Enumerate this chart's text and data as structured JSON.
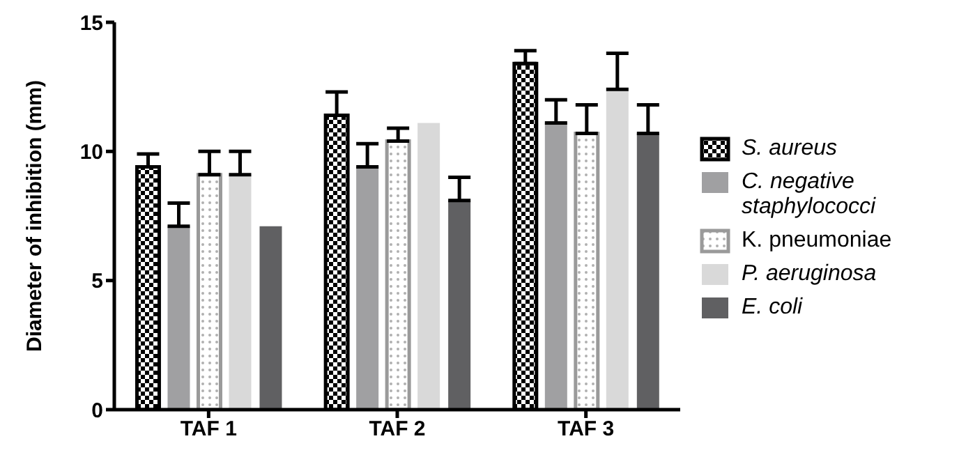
{
  "chart_data": {
    "type": "bar",
    "ylabel": "Diameter of inhibition (mm)",
    "categories": [
      "TAF 1",
      "TAF 2",
      "TAF 3"
    ],
    "ylim": [
      0,
      15
    ],
    "yticks": [
      0,
      5,
      10,
      15
    ],
    "grid": false,
    "legend": "right",
    "series": [
      {
        "name": "S. aureus",
        "color": "#000000",
        "values": [
          9.4,
          11.4,
          13.4
        ],
        "errors": [
          [
            9.4,
            9.9
          ],
          [
            11.4,
            12.3
          ],
          [
            13.4,
            13.9
          ]
        ]
      },
      {
        "name": "C. negative staphylococci",
        "color": "#a0a0a2",
        "values": [
          7.1,
          9.4,
          11.1
        ],
        "errors": [
          [
            7.1,
            8.0
          ],
          [
            9.4,
            10.3
          ],
          [
            11.1,
            12.0
          ]
        ]
      },
      {
        "name": "K. pneumoniae",
        "color": "#9a9a9a",
        "values": [
          9.1,
          10.4,
          10.7
        ],
        "errors": [
          [
            9.1,
            10.0
          ],
          [
            10.4,
            10.9
          ],
          [
            10.7,
            11.8
          ]
        ]
      },
      {
        "name": "P. aeruginosa",
        "color": "#d9d9d9",
        "values": [
          9.1,
          11.1,
          12.4
        ],
        "errors": [
          [
            9.1,
            10.0
          ],
          null,
          [
            12.4,
            13.8
          ]
        ]
      },
      {
        "name": "E. coli",
        "color": "#606062",
        "values": [
          7.1,
          8.1,
          10.7
        ],
        "errors": [
          null,
          [
            8.1,
            9.0
          ],
          [
            10.7,
            11.8
          ]
        ]
      }
    ]
  }
}
